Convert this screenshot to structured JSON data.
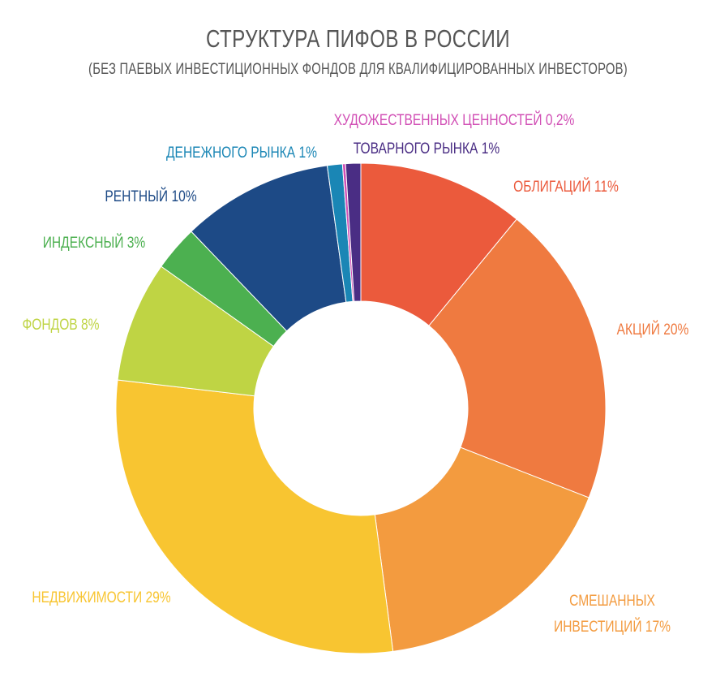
{
  "chart_data": {
    "type": "pie",
    "title": "СТРУКТУРА ПИФОВ В РОССИИ",
    "subtitle": "(БЕЗ ПАЕВЫХ ИНВЕСТИЦИОННЫХ ФОНДОВ ДЛЯ КВАЛИФИЦИРОВАННЫХ ИНВЕСТОРОВ)",
    "donut": true,
    "slices": [
      {
        "name": "ОБЛИГАЦИЙ",
        "value": 11,
        "label": "ОБЛИГАЦИЙ 11%",
        "color": "#EB5A3C"
      },
      {
        "name": "АКЦИЙ",
        "value": 20,
        "label": "АКЦИЙ 20%",
        "color": "#EF7A40"
      },
      {
        "name": "СМЕШАННЫХ ИНВЕСТИЦИЙ",
        "value": 17,
        "label_lines": [
          "СМЕШАННЫХ",
          "ИНВЕСТИЦИЙ 17%"
        ],
        "color": "#F39B3F"
      },
      {
        "name": "НЕДВИЖИМОСТИ",
        "value": 29,
        "label": "НЕДВИЖИМОСТИ 29%",
        "color": "#F8C531"
      },
      {
        "name": "ФОНДОВ",
        "value": 8,
        "label": "ФОНДОВ 8%",
        "color": "#BFD444"
      },
      {
        "name": "ИНДЕКСНЫЙ",
        "value": 3,
        "label": "ИНДЕКСНЫЙ 3%",
        "color": "#4CB050"
      },
      {
        "name": "РЕНТНЫЙ",
        "value": 10,
        "label": "РЕНТНЫЙ 10%",
        "color": "#1D4A86"
      },
      {
        "name": "ДЕНЕЖНОГО РЫНКА",
        "value": 1,
        "label": "ДЕНЕЖНОГО РЫНКА 1%",
        "color": "#1A86B5"
      },
      {
        "name": "ХУДОЖЕСТВЕННЫХ ЦЕННОСТЕЙ",
        "value": 0.2,
        "label": "ХУДОЖЕСТВЕННЫХ ЦЕННОСТЕЙ 0,2%",
        "color": "#D14FB5"
      },
      {
        "name": "ТОВАРНОГО РЫНКА",
        "value": 1,
        "label": "ТОВАРНОГО РЫНКА 1%",
        "color": "#4A2D84"
      }
    ]
  }
}
